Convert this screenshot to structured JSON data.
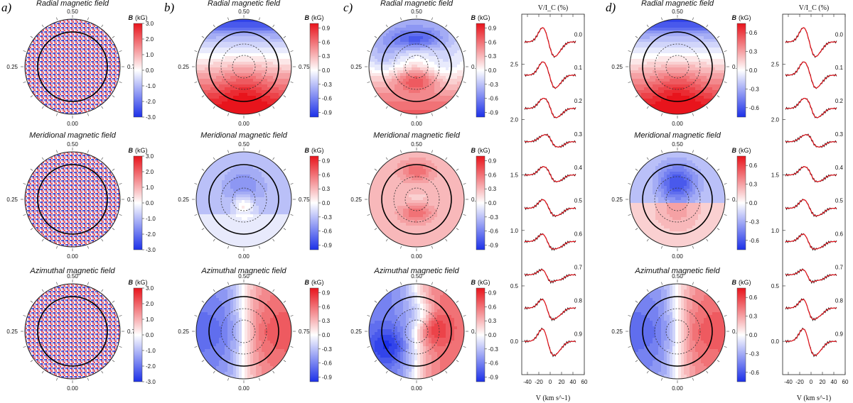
{
  "figure": {
    "panel_labels": [
      "a)",
      "b)",
      "c)",
      "d)"
    ],
    "map_titles": [
      "Radial magnetic field",
      "Meridional magnetic field",
      "Azimuthal magnetic field"
    ],
    "phase_labels": {
      "top": "0.50",
      "left": "0.25",
      "right": "0.75",
      "bottom": "0.00"
    },
    "colorbar_label_prefix": "B",
    "colorbar_label_unit": "(kG)",
    "colors": {
      "pos": "#e8141c",
      "neg": "#1c30e8",
      "mid": "#ffffff",
      "model": "#e8141c",
      "obs": "#222222"
    }
  },
  "chart_data": [
    {
      "type": "heatmap",
      "panel": "a",
      "map": "radial",
      "title": "Radial magnetic field",
      "colorbar_ticks": [
        "3.0",
        "2.0",
        "1.0",
        "0.0",
        "-1.0",
        "-2.0",
        "-3.0"
      ],
      "vmin": -3.0,
      "vmax": 3.0,
      "pattern": "noise"
    },
    {
      "type": "heatmap",
      "panel": "a",
      "map": "meridional",
      "title": "Meridional magnetic field",
      "colorbar_ticks": [
        "3.0",
        "2.0",
        "1.0",
        "0.0",
        "-1.0",
        "-2.0",
        "-3.0"
      ],
      "vmin": -3.0,
      "vmax": 3.0,
      "pattern": "noise"
    },
    {
      "type": "heatmap",
      "panel": "a",
      "map": "azimuthal",
      "title": "Azimuthal magnetic field",
      "colorbar_ticks": [
        "3.0",
        "2.0",
        "1.0",
        "0.0",
        "-1.0",
        "-2.0",
        "-3.0"
      ],
      "vmin": -3.0,
      "vmax": 3.0,
      "pattern": "noise"
    },
    {
      "type": "heatmap",
      "panel": "b",
      "map": "radial",
      "title": "Radial magnetic field",
      "colorbar_ticks": [
        "0.9",
        "0.6",
        "0.3",
        "0.0",
        "-0.3",
        "-0.6",
        "-0.9"
      ],
      "vmin": -1.0,
      "vmax": 1.0,
      "pattern": "dipole"
    },
    {
      "type": "heatmap",
      "panel": "b",
      "map": "meridional",
      "title": "Meridional magnetic field",
      "colorbar_ticks": [
        "0.9",
        "0.6",
        "0.3",
        "0.0",
        "-0.3",
        "-0.6",
        "-0.9"
      ],
      "vmin": -1.0,
      "vmax": 1.0,
      "pattern": "meridional"
    },
    {
      "type": "heatmap",
      "panel": "b",
      "map": "azimuthal",
      "title": "Azimuthal magnetic field",
      "colorbar_ticks": [
        "0.9",
        "0.6",
        "0.3",
        "0.0",
        "-0.3",
        "-0.6",
        "-0.9"
      ],
      "vmin": -1.0,
      "vmax": 1.0,
      "pattern": "azimuthal"
    },
    {
      "type": "heatmap",
      "panel": "c",
      "map": "radial",
      "title": "Radial magnetic field",
      "colorbar_ticks": [
        "0.9",
        "0.6",
        "0.3",
        "0.0",
        "-0.3",
        "-0.6",
        "-0.9"
      ],
      "vmin": -1.0,
      "vmax": 1.0,
      "pattern": "dipole2"
    },
    {
      "type": "heatmap",
      "panel": "c",
      "map": "meridional",
      "title": "Meridional magnetic field",
      "colorbar_ticks": [
        "0.9",
        "0.6",
        "0.3",
        "0.0",
        "-0.3",
        "-0.6",
        "-0.9"
      ],
      "vmin": -1.0,
      "vmax": 1.0,
      "pattern": "meridional2"
    },
    {
      "type": "heatmap",
      "panel": "c",
      "map": "azimuthal",
      "title": "Azimuthal magnetic field",
      "colorbar_ticks": [
        "0.9",
        "0.6",
        "0.3",
        "0.0",
        "-0.3",
        "-0.6",
        "-0.9"
      ],
      "vmin": -1.0,
      "vmax": 1.0,
      "pattern": "azimuthal2"
    },
    {
      "type": "heatmap",
      "panel": "d",
      "map": "radial",
      "title": "Radial magnetic field",
      "colorbar_ticks": [
        "0.6",
        "0.3",
        "0.0",
        "-0.3",
        "-0.6"
      ],
      "vmin": -0.75,
      "vmax": 0.75,
      "pattern": "dipole"
    },
    {
      "type": "heatmap",
      "panel": "d",
      "map": "meridional",
      "title": "Meridional magnetic field",
      "colorbar_ticks": [
        "0.6",
        "0.3",
        "0.0",
        "-0.3",
        "-0.6"
      ],
      "vmin": -0.75,
      "vmax": 0.75,
      "pattern": "meridional3"
    },
    {
      "type": "heatmap",
      "panel": "d",
      "map": "azimuthal",
      "title": "Azimuthal magnetic field",
      "colorbar_ticks": [
        "0.6",
        "0.3",
        "0.0",
        "-0.3",
        "-0.6"
      ],
      "vmin": -0.75,
      "vmax": 0.75,
      "pattern": "azimuthal"
    },
    {
      "type": "line",
      "panel": "c",
      "title": "V/I_C (%)",
      "xlabel": "V (km s^-1)",
      "xlim": [
        -50,
        60
      ],
      "x_ticks": [
        -40,
        -20,
        0,
        20,
        40,
        60
      ],
      "ylim": [
        -0.3,
        2.95
      ],
      "y_ticks": [
        "0.0",
        "0.5",
        "1.0",
        "1.5",
        "2.0",
        "2.5"
      ],
      "phases": [
        "0.0",
        "0.1",
        "0.2",
        "0.3",
        "0.4",
        "0.5",
        "0.6",
        "0.7",
        "0.8",
        "0.9"
      ],
      "offset_step": 0.3,
      "offset_top": 2.7
    },
    {
      "type": "line",
      "panel": "d",
      "title": "V/I_C (%)",
      "xlabel": "V (km s^-1)",
      "xlim": [
        -50,
        60
      ],
      "x_ticks": [
        -40,
        -20,
        0,
        20,
        40,
        60
      ],
      "ylim": [
        -0.3,
        2.95
      ],
      "y_ticks": [
        "0.0",
        "0.5",
        "1.0",
        "1.5",
        "2.0",
        "2.5"
      ],
      "phases": [
        "0.0",
        "0.1",
        "0.2",
        "0.3",
        "0.4",
        "0.5",
        "0.6",
        "0.7",
        "0.8",
        "0.9"
      ],
      "offset_step": 0.3,
      "offset_top": 2.7
    }
  ]
}
